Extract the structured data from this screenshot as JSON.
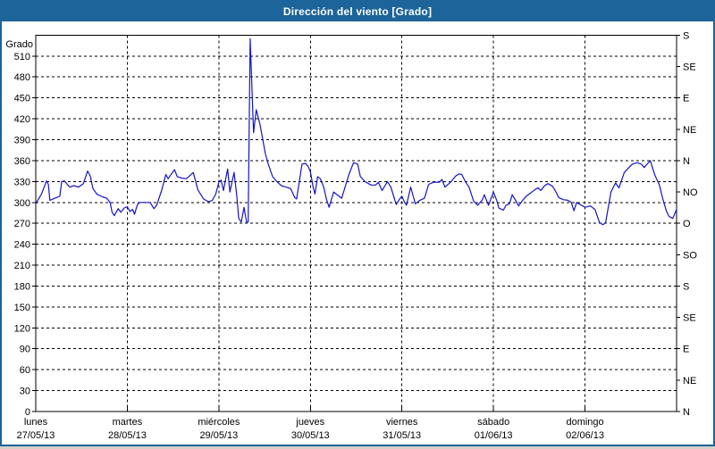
{
  "title": "Dirección del viento [Grado]",
  "colors": {
    "titlebar": "#1c6499",
    "title_text": "#ffffff",
    "border": "#1c6499",
    "line": "#1414c8",
    "axis": "#000000",
    "grid": "#000000",
    "background": "#ffffff"
  },
  "chart_data": {
    "type": "line",
    "title": "Dirección del viento [Grado]",
    "ylabel": "Grado",
    "ylim": [
      0,
      540
    ],
    "y_tick_step": 30,
    "y_ticks": [
      0,
      30,
      60,
      90,
      120,
      150,
      180,
      210,
      240,
      270,
      300,
      330,
      360,
      390,
      420,
      450,
      480,
      510
    ],
    "right_axis_ticks": [
      {
        "label": "N",
        "value": 0
      },
      {
        "label": "NE",
        "value": 45
      },
      {
        "label": "E",
        "value": 90
      },
      {
        "label": "SE",
        "value": 135
      },
      {
        "label": "S",
        "value": 180
      },
      {
        "label": "SO",
        "value": 225
      },
      {
        "label": "O",
        "value": 270
      },
      {
        "label": "NO",
        "value": 315
      },
      {
        "label": "N",
        "value": 360
      },
      {
        "label": "NE",
        "value": 405
      },
      {
        "label": "E",
        "value": 450
      },
      {
        "label": "SE",
        "value": 495
      },
      {
        "label": "S",
        "value": 540
      }
    ],
    "x_days": [
      {
        "name": "lunes",
        "date": "27/05/13"
      },
      {
        "name": "martes",
        "date": "28/05/13"
      },
      {
        "name": "miércoles",
        "date": "29/05/13"
      },
      {
        "name": "jueves",
        "date": "30/05/13"
      },
      {
        "name": "viernes",
        "date": "31/05/13"
      },
      {
        "name": "sábado",
        "date": "01/06/13"
      },
      {
        "name": "domingo",
        "date": "02/06/13"
      }
    ],
    "x_hours_total": 168,
    "grid": true,
    "legend": "none",
    "series": [
      {
        "name": "wind-direction-degrees",
        "color": "#1414c8",
        "points": [
          [
            0,
            298
          ],
          [
            1.5,
            312
          ],
          [
            2.8,
            331
          ],
          [
            3.3,
            326
          ],
          [
            3.7,
            303
          ],
          [
            5,
            306
          ],
          [
            6.3,
            309
          ],
          [
            6.8,
            330
          ],
          [
            7.5,
            331
          ],
          [
            8.9,
            322
          ],
          [
            10,
            324
          ],
          [
            11.2,
            322
          ],
          [
            12.5,
            327
          ],
          [
            13.6,
            345
          ],
          [
            14.3,
            338
          ],
          [
            15,
            320
          ],
          [
            16,
            312
          ],
          [
            17.5,
            308
          ],
          [
            18.6,
            306
          ],
          [
            19.5,
            300
          ],
          [
            20,
            286
          ],
          [
            20.6,
            281
          ],
          [
            21.6,
            291
          ],
          [
            22.3,
            286
          ],
          [
            23.2,
            292
          ],
          [
            24,
            294
          ],
          [
            24.7,
            287
          ],
          [
            25.4,
            290
          ],
          [
            25.9,
            283
          ],
          [
            26.6,
            296
          ],
          [
            27.2,
            300
          ],
          [
            30,
            300
          ],
          [
            31,
            291
          ],
          [
            31.7,
            296
          ],
          [
            33,
            317
          ],
          [
            34.1,
            340
          ],
          [
            34.7,
            334
          ],
          [
            35.3,
            339
          ],
          [
            36.4,
            347
          ],
          [
            37.1,
            337
          ],
          [
            38.3,
            335
          ],
          [
            39.5,
            334
          ],
          [
            41.3,
            343
          ],
          [
            42.5,
            318
          ],
          [
            44,
            305
          ],
          [
            45.3,
            301
          ],
          [
            46.3,
            303
          ],
          [
            47.2,
            312
          ],
          [
            48,
            329
          ],
          [
            48.6,
            332
          ],
          [
            49.2,
            317
          ],
          [
            50.3,
            348
          ],
          [
            50.9,
            315
          ],
          [
            52,
            343
          ],
          [
            52.7,
            310
          ],
          [
            53.2,
            277
          ],
          [
            53.9,
            272
          ],
          [
            54.6,
            293
          ],
          [
            55.3,
            271
          ],
          [
            55.7,
            272
          ],
          [
            56,
            430
          ],
          [
            56.2,
            535
          ],
          [
            57.1,
            400
          ],
          [
            57.8,
            433
          ],
          [
            58.8,
            412
          ],
          [
            60.2,
            370
          ],
          [
            60.9,
            356
          ],
          [
            62.1,
            337
          ],
          [
            63.2,
            330
          ],
          [
            64.4,
            324
          ],
          [
            65.6,
            322
          ],
          [
            66.8,
            320
          ],
          [
            67.9,
            307
          ],
          [
            68.4,
            305
          ],
          [
            69.8,
            355
          ],
          [
            70.7,
            356
          ],
          [
            71.4,
            352
          ],
          [
            72,
            344
          ],
          [
            72.7,
            322
          ],
          [
            73.2,
            312
          ],
          [
            73.9,
            337
          ],
          [
            74.6,
            334
          ],
          [
            75.5,
            322
          ],
          [
            76.2,
            305
          ],
          [
            76.9,
            293
          ],
          [
            78.1,
            315
          ],
          [
            79.3,
            310
          ],
          [
            80.2,
            306
          ],
          [
            82.1,
            340
          ],
          [
            83.3,
            357
          ],
          [
            84.4,
            355
          ],
          [
            85.1,
            337
          ],
          [
            86.3,
            330
          ],
          [
            87.9,
            325
          ],
          [
            89.1,
            325
          ],
          [
            89.8,
            329
          ],
          [
            90.8,
            317
          ],
          [
            92.2,
            330
          ],
          [
            93.1,
            322
          ],
          [
            94.5,
            297
          ],
          [
            95.4,
            305
          ],
          [
            96,
            309
          ],
          [
            96.7,
            300
          ],
          [
            97.2,
            296
          ],
          [
            98.3,
            322
          ],
          [
            99.5,
            298
          ],
          [
            100.7,
            303
          ],
          [
            101.9,
            306
          ],
          [
            103,
            326
          ],
          [
            104.4,
            329
          ],
          [
            105.8,
            329
          ],
          [
            106.5,
            333
          ],
          [
            107.3,
            322
          ],
          [
            108.9,
            330
          ],
          [
            110.1,
            338
          ],
          [
            111,
            341
          ],
          [
            111.7,
            340
          ],
          [
            112.6,
            330
          ],
          [
            113.6,
            322
          ],
          [
            114.8,
            302
          ],
          [
            115.9,
            296
          ],
          [
            117.1,
            304
          ],
          [
            117.6,
            311
          ],
          [
            118.7,
            296
          ],
          [
            120,
            315
          ],
          [
            120.9,
            302
          ],
          [
            121.4,
            292
          ],
          [
            122.6,
            289
          ],
          [
            123.3,
            296
          ],
          [
            124.2,
            298
          ],
          [
            124.9,
            311
          ],
          [
            125.6,
            305
          ],
          [
            126.6,
            295
          ],
          [
            127.5,
            302
          ],
          [
            128.4,
            308
          ],
          [
            129.6,
            313
          ],
          [
            130.8,
            318
          ],
          [
            131.7,
            321
          ],
          [
            132.4,
            317
          ],
          [
            133.4,
            324
          ],
          [
            134.3,
            327
          ],
          [
            135.5,
            323
          ],
          [
            136.4,
            315
          ],
          [
            137.1,
            307
          ],
          [
            138.3,
            304
          ],
          [
            139.5,
            303
          ],
          [
            140.4,
            300
          ],
          [
            141.1,
            288
          ],
          [
            141.8,
            300
          ],
          [
            142.7,
            297
          ],
          [
            144,
            293
          ],
          [
            145.4,
            295
          ],
          [
            146.6,
            290
          ],
          [
            147.8,
            271
          ],
          [
            148.7,
            268
          ],
          [
            149.4,
            271
          ],
          [
            150.8,
            315
          ],
          [
            152,
            328
          ],
          [
            152.9,
            321
          ],
          [
            154.3,
            343
          ],
          [
            155.5,
            350
          ],
          [
            156.4,
            355
          ],
          [
            157.6,
            357
          ],
          [
            158.8,
            355
          ],
          [
            159.5,
            350
          ],
          [
            161.1,
            360
          ],
          [
            162.3,
            339
          ],
          [
            163.5,
            325
          ],
          [
            164.4,
            305
          ],
          [
            165.3,
            288
          ],
          [
            166,
            280
          ],
          [
            167,
            277
          ],
          [
            168,
            290
          ]
        ]
      }
    ]
  }
}
